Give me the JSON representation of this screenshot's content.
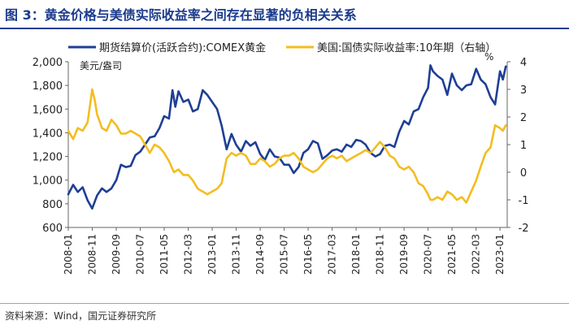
{
  "figure": {
    "title": "图 3：黄金价格与美债实际收益率之间存在显著的负相关关系",
    "source": "资料来源：Wind，国元证券研究所"
  },
  "colors": {
    "gold": "#1f3f95",
    "yield": "#f3bd1f",
    "axis": "#666666",
    "title": "#1a3a8c"
  },
  "chart_data": {
    "type": "line",
    "title": "黄金价格与美债实际收益率之间存在显著的负相关关系",
    "x_range": [
      2008.0,
      2023.25
    ],
    "x_tick_labels": [
      "2008-01",
      "2008-11",
      "2009-09",
      "2010-07",
      "2011-05",
      "2012-03",
      "2013-01",
      "2013-11",
      "2014-09",
      "2015-07",
      "2016-05",
      "2017-03",
      "2018-01",
      "2018-11",
      "2019-09",
      "2020-07",
      "2021-05",
      "2022-03",
      "2023-01"
    ],
    "x_tick_values": [
      2008.0,
      2008.833,
      2009.667,
      2010.5,
      2011.333,
      2012.167,
      2013.0,
      2013.833,
      2014.667,
      2015.5,
      2016.333,
      2017.167,
      2018.0,
      2018.833,
      2019.667,
      2020.5,
      2021.333,
      2022.167,
      2023.0
    ],
    "left_axis": {
      "label": "美元/盎司",
      "range": [
        600,
        2000
      ],
      "ticks": [
        "600",
        "800",
        "1,000",
        "1,200",
        "1,400",
        "1,600",
        "1,800",
        "2,000"
      ],
      "tick_values": [
        600,
        800,
        1000,
        1200,
        1400,
        1600,
        1800,
        2000
      ]
    },
    "right_axis": {
      "label": "%",
      "range": [
        -2,
        4
      ],
      "ticks": [
        "-2",
        "-1",
        "0",
        "1",
        "2",
        "3",
        "4"
      ],
      "tick_values": [
        -2,
        -1,
        0,
        1,
        2,
        3,
        4
      ]
    },
    "series": [
      {
        "name": "期货结算价(活跃合约):COMEX黄金",
        "axis": "left",
        "points": [
          [
            2008.0,
            880
          ],
          [
            2008.17,
            960
          ],
          [
            2008.33,
            900
          ],
          [
            2008.5,
            940
          ],
          [
            2008.67,
            830
          ],
          [
            2008.83,
            760
          ],
          [
            2009.0,
            870
          ],
          [
            2009.17,
            930
          ],
          [
            2009.33,
            900
          ],
          [
            2009.5,
            930
          ],
          [
            2009.67,
            1000
          ],
          [
            2009.83,
            1130
          ],
          [
            2010.0,
            1110
          ],
          [
            2010.17,
            1120
          ],
          [
            2010.33,
            1210
          ],
          [
            2010.5,
            1240
          ],
          [
            2010.67,
            1300
          ],
          [
            2010.83,
            1360
          ],
          [
            2011.0,
            1370
          ],
          [
            2011.17,
            1440
          ],
          [
            2011.33,
            1540
          ],
          [
            2011.5,
            1520
          ],
          [
            2011.62,
            1760
          ],
          [
            2011.72,
            1620
          ],
          [
            2011.83,
            1750
          ],
          [
            2012.0,
            1660
          ],
          [
            2012.17,
            1680
          ],
          [
            2012.33,
            1580
          ],
          [
            2012.5,
            1600
          ],
          [
            2012.67,
            1760
          ],
          [
            2012.83,
            1720
          ],
          [
            2013.0,
            1660
          ],
          [
            2013.17,
            1600
          ],
          [
            2013.33,
            1460
          ],
          [
            2013.5,
            1260
          ],
          [
            2013.67,
            1390
          ],
          [
            2013.83,
            1300
          ],
          [
            2014.0,
            1240
          ],
          [
            2014.17,
            1330
          ],
          [
            2014.33,
            1290
          ],
          [
            2014.5,
            1320
          ],
          [
            2014.67,
            1220
          ],
          [
            2014.83,
            1170
          ],
          [
            2015.0,
            1260
          ],
          [
            2015.17,
            1200
          ],
          [
            2015.33,
            1190
          ],
          [
            2015.5,
            1130
          ],
          [
            2015.67,
            1130
          ],
          [
            2015.83,
            1060
          ],
          [
            2016.0,
            1110
          ],
          [
            2016.17,
            1230
          ],
          [
            2016.33,
            1260
          ],
          [
            2016.5,
            1330
          ],
          [
            2016.67,
            1310
          ],
          [
            2016.83,
            1180
          ],
          [
            2017.0,
            1210
          ],
          [
            2017.17,
            1250
          ],
          [
            2017.33,
            1260
          ],
          [
            2017.5,
            1240
          ],
          [
            2017.67,
            1300
          ],
          [
            2017.83,
            1280
          ],
          [
            2018.0,
            1340
          ],
          [
            2018.17,
            1330
          ],
          [
            2018.33,
            1300
          ],
          [
            2018.5,
            1230
          ],
          [
            2018.67,
            1200
          ],
          [
            2018.83,
            1220
          ],
          [
            2019.0,
            1290
          ],
          [
            2019.17,
            1300
          ],
          [
            2019.33,
            1280
          ],
          [
            2019.5,
            1410
          ],
          [
            2019.67,
            1500
          ],
          [
            2019.83,
            1470
          ],
          [
            2020.0,
            1580
          ],
          [
            2020.17,
            1600
          ],
          [
            2020.33,
            1700
          ],
          [
            2020.5,
            1780
          ],
          [
            2020.58,
            1970
          ],
          [
            2020.67,
            1920
          ],
          [
            2020.83,
            1880
          ],
          [
            2021.0,
            1850
          ],
          [
            2021.17,
            1720
          ],
          [
            2021.33,
            1900
          ],
          [
            2021.5,
            1800
          ],
          [
            2021.67,
            1760
          ],
          [
            2021.83,
            1800
          ],
          [
            2022.0,
            1810
          ],
          [
            2022.17,
            1940
          ],
          [
            2022.33,
            1850
          ],
          [
            2022.5,
            1810
          ],
          [
            2022.67,
            1700
          ],
          [
            2022.83,
            1640
          ],
          [
            2023.0,
            1920
          ],
          [
            2023.1,
            1850
          ],
          [
            2023.2,
            1960
          ]
        ]
      },
      {
        "name": "美国:国债实际收益率:10年期（右轴）",
        "axis": "right",
        "points": [
          [
            2008.0,
            1.5
          ],
          [
            2008.17,
            1.2
          ],
          [
            2008.33,
            1.6
          ],
          [
            2008.5,
            1.5
          ],
          [
            2008.67,
            1.8
          ],
          [
            2008.75,
            2.4
          ],
          [
            2008.83,
            3.0
          ],
          [
            2008.92,
            2.6
          ],
          [
            2009.0,
            2.1
          ],
          [
            2009.17,
            1.6
          ],
          [
            2009.33,
            1.5
          ],
          [
            2009.5,
            1.9
          ],
          [
            2009.67,
            1.7
          ],
          [
            2009.83,
            1.4
          ],
          [
            2010.0,
            1.4
          ],
          [
            2010.17,
            1.5
          ],
          [
            2010.33,
            1.4
          ],
          [
            2010.5,
            1.3
          ],
          [
            2010.67,
            1.0
          ],
          [
            2010.83,
            0.7
          ],
          [
            2011.0,
            1.0
          ],
          [
            2011.17,
            0.9
          ],
          [
            2011.33,
            0.7
          ],
          [
            2011.5,
            0.4
          ],
          [
            2011.67,
            0.0
          ],
          [
            2011.83,
            0.1
          ],
          [
            2012.0,
            -0.1
          ],
          [
            2012.17,
            -0.1
          ],
          [
            2012.33,
            -0.3
          ],
          [
            2012.5,
            -0.6
          ],
          [
            2012.67,
            -0.7
          ],
          [
            2012.83,
            -0.8
          ],
          [
            2013.0,
            -0.7
          ],
          [
            2013.17,
            -0.6
          ],
          [
            2013.33,
            -0.4
          ],
          [
            2013.5,
            0.5
          ],
          [
            2013.67,
            0.7
          ],
          [
            2013.83,
            0.6
          ],
          [
            2014.0,
            0.7
          ],
          [
            2014.17,
            0.6
          ],
          [
            2014.33,
            0.3
          ],
          [
            2014.5,
            0.3
          ],
          [
            2014.67,
            0.5
          ],
          [
            2014.83,
            0.4
          ],
          [
            2015.0,
            0.2
          ],
          [
            2015.17,
            0.3
          ],
          [
            2015.33,
            0.5
          ],
          [
            2015.5,
            0.6
          ],
          [
            2015.67,
            0.6
          ],
          [
            2015.83,
            0.7
          ],
          [
            2016.0,
            0.5
          ],
          [
            2016.17,
            0.2
          ],
          [
            2016.33,
            0.1
          ],
          [
            2016.5,
            0.0
          ],
          [
            2016.67,
            0.1
          ],
          [
            2016.83,
            0.3
          ],
          [
            2017.0,
            0.5
          ],
          [
            2017.17,
            0.6
          ],
          [
            2017.33,
            0.5
          ],
          [
            2017.5,
            0.6
          ],
          [
            2017.67,
            0.4
          ],
          [
            2017.83,
            0.5
          ],
          [
            2018.0,
            0.6
          ],
          [
            2018.17,
            0.7
          ],
          [
            2018.33,
            0.8
          ],
          [
            2018.5,
            0.7
          ],
          [
            2018.67,
            0.9
          ],
          [
            2018.83,
            1.1
          ],
          [
            2019.0,
            0.9
          ],
          [
            2019.17,
            0.6
          ],
          [
            2019.33,
            0.5
          ],
          [
            2019.5,
            0.2
          ],
          [
            2019.67,
            0.1
          ],
          [
            2019.83,
            0.2
          ],
          [
            2020.0,
            0.0
          ],
          [
            2020.17,
            -0.4
          ],
          [
            2020.33,
            -0.5
          ],
          [
            2020.5,
            -0.8
          ],
          [
            2020.58,
            -1.0
          ],
          [
            2020.67,
            -1.0
          ],
          [
            2020.83,
            -0.9
          ],
          [
            2021.0,
            -1.0
          ],
          [
            2021.17,
            -0.7
          ],
          [
            2021.33,
            -0.8
          ],
          [
            2021.5,
            -1.0
          ],
          [
            2021.67,
            -0.9
          ],
          [
            2021.83,
            -1.1
          ],
          [
            2022.0,
            -0.7
          ],
          [
            2022.17,
            -0.3
          ],
          [
            2022.33,
            0.2
          ],
          [
            2022.5,
            0.7
          ],
          [
            2022.67,
            0.9
          ],
          [
            2022.83,
            1.7
          ],
          [
            2023.0,
            1.6
          ],
          [
            2023.1,
            1.5
          ],
          [
            2023.2,
            1.7
          ]
        ]
      }
    ]
  }
}
